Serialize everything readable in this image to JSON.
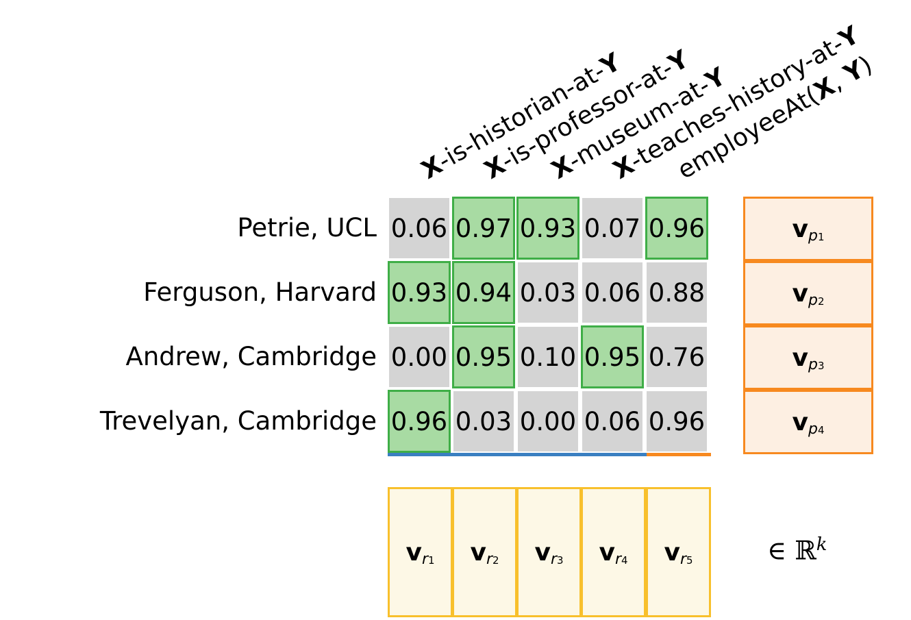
{
  "columns": [
    {
      "bold_prefix": "X",
      "text": "-is-historian-at-",
      "bold_suffix": "Y"
    },
    {
      "bold_prefix": "X",
      "text": "-is-professor-at-",
      "bold_suffix": "Y"
    },
    {
      "bold_prefix": "X",
      "text": "-museum-at-",
      "bold_suffix": "Y"
    },
    {
      "bold_prefix": "X",
      "text": "-teaches-history-at-",
      "bold_suffix": "Y"
    },
    {
      "prefix": "employeeAt(",
      "arg1": "X",
      "sep": ", ",
      "arg2": "Y",
      "close": ")"
    }
  ],
  "rows": [
    {
      "label": "Petrie, UCL",
      "values": [
        "0.06",
        "0.97",
        "0.93",
        "0.07",
        "0.96"
      ],
      "highlight": [
        false,
        true,
        true,
        false,
        true
      ]
    },
    {
      "label": "Ferguson, Harvard",
      "values": [
        "0.93",
        "0.94",
        "0.03",
        "0.06",
        "0.88"
      ],
      "highlight": [
        true,
        true,
        false,
        false,
        false
      ]
    },
    {
      "label": "Andrew, Cambridge",
      "values": [
        "0.00",
        "0.95",
        "0.10",
        "0.95",
        "0.76"
      ],
      "highlight": [
        false,
        true,
        false,
        true,
        false
      ]
    },
    {
      "label": "Trevelyan, Cambridge",
      "values": [
        "0.96",
        "0.03",
        "0.00",
        "0.06",
        "0.96"
      ],
      "highlight": [
        true,
        false,
        false,
        false,
        false
      ]
    }
  ],
  "pair_vectors": [
    {
      "symbol": "v",
      "sub": "p",
      "index": "1"
    },
    {
      "symbol": "v",
      "sub": "p",
      "index": "2"
    },
    {
      "symbol": "v",
      "sub": "p",
      "index": "3"
    },
    {
      "symbol": "v",
      "sub": "p",
      "index": "4"
    }
  ],
  "relation_vectors": [
    {
      "symbol": "v",
      "sub": "r",
      "index": "1"
    },
    {
      "symbol": "v",
      "sub": "r",
      "index": "2"
    },
    {
      "symbol": "v",
      "sub": "r",
      "index": "3"
    },
    {
      "symbol": "v",
      "sub": "r",
      "index": "4"
    },
    {
      "symbol": "v",
      "sub": "r",
      "index": "5"
    }
  ],
  "membership": {
    "symbol": "∈ ℝ",
    "exponent": "k"
  },
  "colors": {
    "cell": "#d4d4d4",
    "highlight_fill": "#a8dba3",
    "highlight_border": "#3fae47",
    "pair_fill": "#fdefe2",
    "pair_border": "#f7891f",
    "relation_fill": "#fdf8e6",
    "relation_border": "#f8c02c",
    "surface_underline": "#3a7fc1",
    "kb_underline": "#f7891f"
  }
}
